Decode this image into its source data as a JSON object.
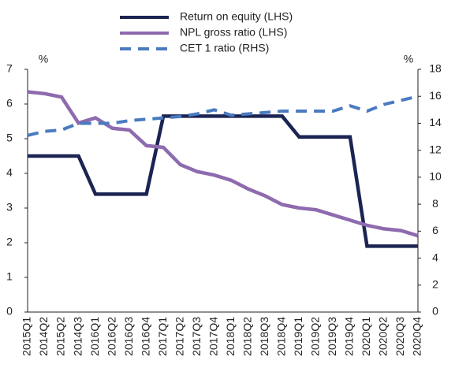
{
  "chart_data": {
    "type": "line",
    "categories": [
      "2015Q1",
      "2014Q2",
      "2015Q2",
      "2014Q3",
      "2016Q1",
      "2016Q2",
      "2016Q3",
      "2016Q4",
      "2017Q1",
      "2017Q2",
      "2017Q3",
      "2017Q4",
      "2018Q1",
      "2018Q2",
      "2018Q3",
      "2018Q4",
      "2019Q1",
      "2019Q2",
      "2019Q3",
      "2019Q4",
      "2020Q1",
      "2020Q2",
      "2020Q3",
      "2020Q4"
    ],
    "series": [
      {
        "name": "Return on equity (LHS)",
        "color": "#1b2452",
        "dash": false,
        "values": [
          4.5,
          4.5,
          4.5,
          4.5,
          3.4,
          3.4,
          3.4,
          3.4,
          5.65,
          5.65,
          5.65,
          5.65,
          5.65,
          5.65,
          5.65,
          5.65,
          5.05,
          5.05,
          5.05,
          5.05,
          1.9,
          1.9,
          1.9,
          1.9
        ]
      },
      {
        "name": "NPL gross ratio (LHS)",
        "color": "#8e6aaf",
        "dash": false,
        "values": [
          6.35,
          6.3,
          6.2,
          5.45,
          5.6,
          5.3,
          5.25,
          4.8,
          4.75,
          4.25,
          4.05,
          3.95,
          3.8,
          3.55,
          3.35,
          3.1,
          3.0,
          2.95,
          2.8,
          2.65,
          2.5,
          2.4,
          2.35,
          2.2
        ]
      },
      {
        "name": "CET 1 ratio (RHS)",
        "color": "#4a7bbf",
        "dash": true,
        "axis": "y2",
        "values": [
          13.1,
          13.4,
          13.5,
          14.0,
          14.0,
          14.0,
          14.2,
          14.3,
          14.4,
          14.5,
          14.7,
          15.0,
          14.6,
          14.7,
          14.8,
          14.9,
          14.9,
          14.9,
          14.9,
          15.3,
          14.9,
          15.4,
          15.7,
          16.0
        ]
      }
    ],
    "y_label": "%",
    "y2_label": "%",
    "ylim": [
      0,
      7
    ],
    "yticks": [
      0,
      1,
      2,
      3,
      4,
      5,
      6,
      7
    ],
    "y2lim": [
      0,
      18
    ],
    "y2ticks": [
      0,
      2,
      4,
      6,
      8,
      10,
      12,
      14,
      16,
      18
    ],
    "grid": false
  }
}
